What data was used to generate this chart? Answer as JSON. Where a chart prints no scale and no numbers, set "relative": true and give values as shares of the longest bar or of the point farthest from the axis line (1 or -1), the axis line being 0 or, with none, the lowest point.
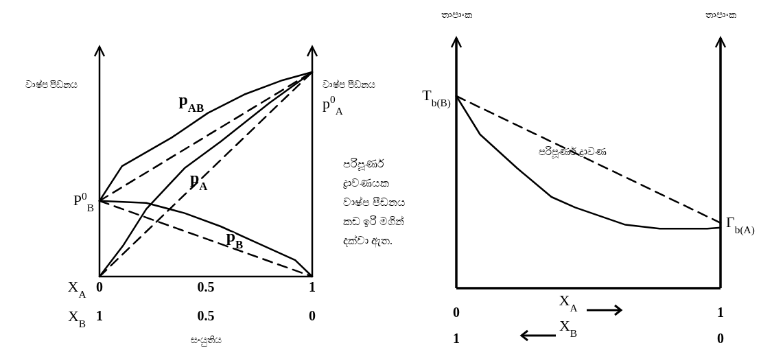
{
  "chart_data": [
    {
      "type": "line",
      "relative": true,
      "xlim": [
        0,
        1
      ],
      "xticks": [
        0,
        0.5,
        1
      ],
      "x2lim": [
        1,
        0
      ],
      "x2ticks": [
        1,
        0.5,
        0
      ],
      "xlabel": "X$_{A}$",
      "x2label": "X$_{B}$",
      "ylabel": "වාෂ්ප පීඩනය",
      "y2label": "වාෂ්ප පීඩනය",
      "tick_labels": "x",
      "series": [
        {
          "name": "p$_{AB}$",
          "color": "#000000",
          "line_style": "solid",
          "x": [
            0,
            0.106,
            0.34,
            0.51,
            0.68,
            0.86,
            1
          ],
          "values": [
            0.37,
            0.54,
            0.68,
            0.8,
            0.89,
            0.96,
            1
          ]
        },
        {
          "name": "p$_{A}$",
          "color": "#000000",
          "line_style": "solid",
          "x": [
            0,
            0.11,
            0.22,
            0.4,
            0.57,
            0.8,
            1
          ],
          "values": [
            0,
            0.15,
            0.33,
            0.53,
            0.66,
            0.85,
            1
          ]
        },
        {
          "name": "p$_{B}$",
          "color": "#000000",
          "line_style": "solid",
          "x": [
            0,
            0.22,
            0.4,
            0.57,
            0.74,
            0.92,
            1
          ],
          "values": [
            0.37,
            0.36,
            0.31,
            0.245,
            0.165,
            0.08,
            0
          ]
        },
        {
          "color": "#000000",
          "line_style": "dashed",
          "x": [
            0,
            1
          ],
          "values": [
            0.37,
            1
          ]
        },
        {
          "color": "#000000",
          "line_style": "dashed",
          "x": [
            0,
            1
          ],
          "values": [
            0,
            1
          ]
        },
        {
          "color": "#000000",
          "line_style": "dashed",
          "x": [
            0,
            1
          ],
          "values": [
            0.37,
            0
          ]
        }
      ],
      "annotations": [
        "සංයුතිය",
        "පරිපූර්ණ ද්‍රාවණයක වාෂ්ප පීඩනය කඩ ඉරි මගින් දක්වා ඇත.",
        {
          "text": "P$^{0}$$_{B}$",
          "x": 0,
          "y": 0.37
        },
        "p$^{0}$$_{A}$"
      ]
    },
    {
      "type": "line",
      "relative": true,
      "xlim": [
        0,
        1
      ],
      "xticks": [
        0,
        1
      ],
      "x2lim": [
        1,
        0
      ],
      "x2ticks": [
        1,
        0
      ],
      "xlabel": "X$_{A}$",
      "x2label": "X$_{B}$",
      "ylabel": "තාපාංක",
      "y2label": "තාපාංක",
      "tick_labels": "x",
      "series": [
        {
          "color": "#000000",
          "line_style": "dashed",
          "x": [
            0,
            1
          ],
          "values": [
            1,
            0.34
          ]
        },
        {
          "color": "#000000",
          "line_style": "solid",
          "x": [
            0,
            0.09,
            0.23,
            0.36,
            0.45,
            0.64,
            0.77,
            0.95,
            1
          ],
          "values": [
            1,
            0.8,
            0.625,
            0.475,
            0.42,
            0.33,
            0.31,
            0.31,
            0.315
          ]
        }
      ],
      "annotations": [
        {
          "text": "T$_{b(B)}$",
          "x": 0,
          "y": 1
        },
        {
          "text": "Γ$_{b(A)}$",
          "x": 1,
          "y": 0.34
        },
        {
          "text": "පරිපූර්ණ ද්‍රාවණ",
          "x": 0.44,
          "y": 0.71
        }
      ]
    }
  ]
}
